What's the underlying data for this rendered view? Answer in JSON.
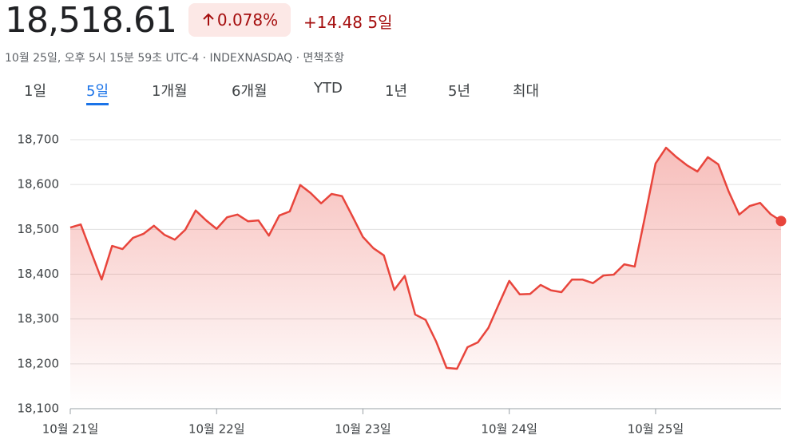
{
  "header": {
    "price": "18,518.61",
    "change_pct": "0.078%",
    "change_abs": "+14.48 5일",
    "subtitle": "10월 25일, 오후 5시 15분 59초 UTC-4 · INDEXNASDAQ · 면책조항"
  },
  "tabs": [
    "1일",
    "5일",
    "1개월",
    "6개월",
    "YTD",
    "1년",
    "5년",
    "최대"
  ],
  "selected_tab": 1,
  "chart_data": {
    "type": "area",
    "color": "#e8453c",
    "grid": true,
    "categories": [
      "10월 21일",
      null,
      null,
      null,
      null,
      null,
      null,
      null,
      null,
      null,
      null,
      null,
      null,
      null,
      "10월 22일",
      null,
      null,
      null,
      null,
      null,
      null,
      null,
      null,
      null,
      null,
      null,
      null,
      null,
      "10월 23일",
      null,
      null,
      null,
      null,
      null,
      null,
      null,
      null,
      null,
      null,
      null,
      null,
      null,
      "10월 24일",
      null,
      null,
      null,
      null,
      null,
      null,
      null,
      null,
      null,
      null,
      null,
      null,
      null,
      "10월 25일",
      null,
      null,
      null,
      null,
      null,
      null,
      null,
      null,
      null,
      null,
      null,
      null
    ],
    "values": [
      18504,
      18511,
      18449,
      18388,
      18463,
      18456,
      18481,
      18490,
      18508,
      18488,
      18477,
      18499,
      18542,
      18520,
      18501,
      18527,
      18533,
      18518,
      18520,
      18486,
      18531,
      18540,
      18599,
      18581,
      18558,
      18579,
      18574,
      18529,
      18483,
      18458,
      18442,
      18365,
      18396,
      18310,
      18298,
      18250,
      18191,
      18189,
      18237,
      18248,
      18280,
      18333,
      18385,
      18355,
      18356,
      18376,
      18364,
      18360,
      18388,
      18388,
      18380,
      18397,
      18399,
      18422,
      18417,
      18530,
      18647,
      18682,
      18661,
      18643,
      18629,
      18661,
      18645,
      18584,
      18533,
      18552,
      18559,
      18534,
      18518.61
    ],
    "ylim": [
      18100,
      18700
    ],
    "yticks": [
      {
        "value": 18100,
        "label": "18,100"
      },
      {
        "value": 18200,
        "label": "18,200"
      },
      {
        "value": 18300,
        "label": "18,300"
      },
      {
        "value": 18400,
        "label": "18,400"
      },
      {
        "value": 18500,
        "label": "18,500"
      },
      {
        "value": 18600,
        "label": "18,600"
      },
      {
        "value": 18700,
        "label": "18,700"
      }
    ]
  }
}
